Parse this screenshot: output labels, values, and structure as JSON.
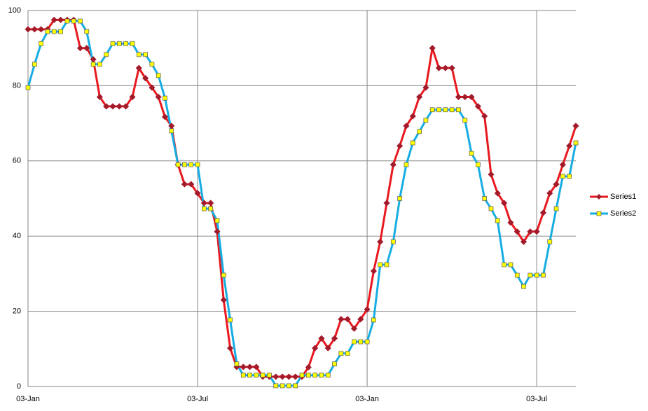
{
  "chart_data": {
    "type": "line",
    "categories": [
      "03-Jan",
      null,
      null,
      null,
      null,
      null,
      null,
      null,
      null,
      null,
      null,
      null,
      null,
      null,
      null,
      null,
      null,
      null,
      null,
      null,
      null,
      null,
      null,
      null,
      null,
      null,
      "03-Jul",
      null,
      null,
      null,
      null,
      null,
      null,
      null,
      null,
      null,
      null,
      null,
      null,
      null,
      null,
      null,
      null,
      null,
      null,
      null,
      null,
      null,
      null,
      null,
      null,
      null,
      "03-Jan",
      null,
      null,
      null,
      null,
      null,
      null,
      null,
      null,
      null,
      null,
      null,
      null,
      null,
      null,
      null,
      null,
      null,
      null,
      null,
      null,
      null,
      null,
      null,
      null,
      null,
      "03-Jul",
      null,
      null,
      null,
      null,
      null,
      null
    ],
    "series": [
      {
        "name": "Series1",
        "color": "#e8191f",
        "marker": "diamond",
        "marker_color": "#a31a2a",
        "values": [
          95,
          95,
          95,
          95,
          97.5,
          97.5,
          97.5,
          97.5,
          90,
          90,
          87,
          77,
          74.5,
          74.5,
          74.5,
          74.5,
          77,
          84.7,
          82,
          79.5,
          77,
          71.7,
          69.3,
          59,
          53.8,
          53.8,
          51.4,
          48.8,
          48.8,
          41.2,
          23,
          10.2,
          5.2,
          5.2,
          5.2,
          5.2,
          2.6,
          2.6,
          2.6,
          2.6,
          2.6,
          2.6,
          2.6,
          5.1,
          10.2,
          12.8,
          10.2,
          12.8,
          17.9,
          17.9,
          15.4,
          17.9,
          20.5,
          30.7,
          38.5,
          48.8,
          59,
          64,
          69.3,
          71.9,
          77,
          79.5,
          90,
          84.7,
          84.7,
          84.7,
          77,
          77,
          77,
          74.5,
          71.9,
          56.4,
          51.4,
          48.8,
          43.6,
          41.2,
          38.5,
          41.2,
          41.2,
          46.2,
          51.4,
          53.8,
          59,
          64,
          69.3
        ]
      },
      {
        "name": "Series2",
        "color": "#17ade3",
        "marker": "square",
        "marker_color": "#ffff00",
        "values": [
          79.5,
          85.7,
          91.2,
          94.4,
          94.4,
          94.4,
          97.2,
          97.2,
          97.2,
          94.4,
          85.7,
          85.7,
          88.3,
          91.2,
          91.2,
          91.2,
          91.2,
          88.3,
          88.3,
          85.7,
          82.7,
          76.7,
          68,
          59,
          59,
          59,
          59,
          47.3,
          47.3,
          44.1,
          29.6,
          17.7,
          6,
          3,
          3,
          3,
          3,
          3,
          0.2,
          0.2,
          0.2,
          0.2,
          3,
          3,
          3,
          3,
          3,
          6,
          8.8,
          8.8,
          11.9,
          11.9,
          11.9,
          17.7,
          32.4,
          32.4,
          38.5,
          50,
          59,
          64.8,
          67.8,
          70.8,
          73.6,
          73.6,
          73.6,
          73.6,
          73.6,
          70.8,
          62,
          59,
          50,
          47.3,
          44.1,
          32.4,
          32.4,
          29.6,
          26.6,
          29.6,
          29.6,
          29.6,
          38.5,
          47.3,
          55.9,
          55.9,
          64.8
        ]
      }
    ],
    "ylim": [
      0,
      100
    ],
    "yticks": [
      0,
      20,
      40,
      60,
      80,
      100
    ],
    "grid": true,
    "legend": "right"
  }
}
